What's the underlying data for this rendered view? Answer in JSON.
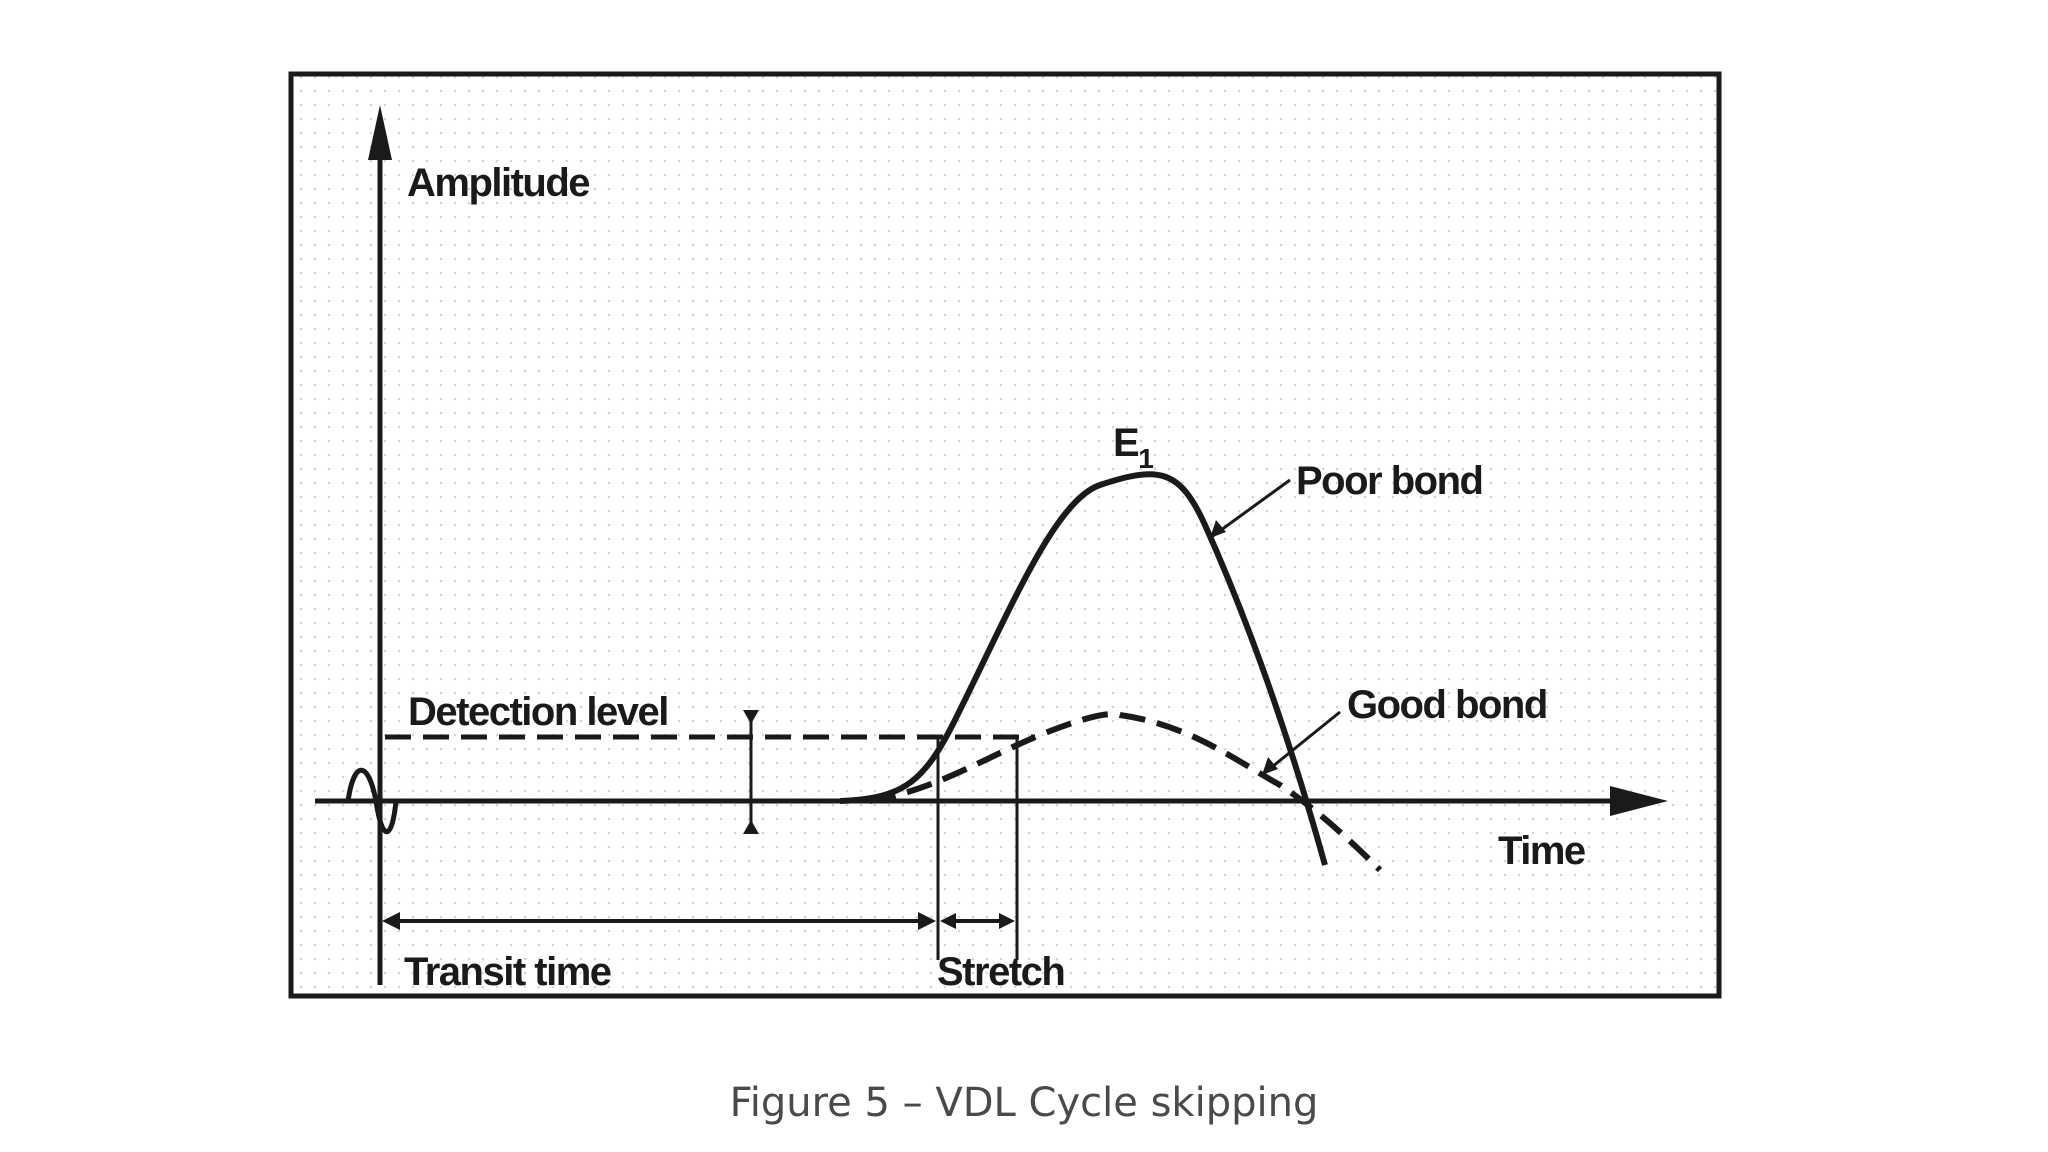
{
  "labels": {
    "y_axis": "Amplitude",
    "x_axis": "Time",
    "detection_level": "Detection level",
    "peak_letter": "E",
    "peak_subscript": "1",
    "poor_bond": "Poor bond",
    "good_bond": "Good bond",
    "transit_time": "Transit time",
    "stretch": "Stretch"
  },
  "caption": "Figure 5 – VDL Cycle skipping"
}
